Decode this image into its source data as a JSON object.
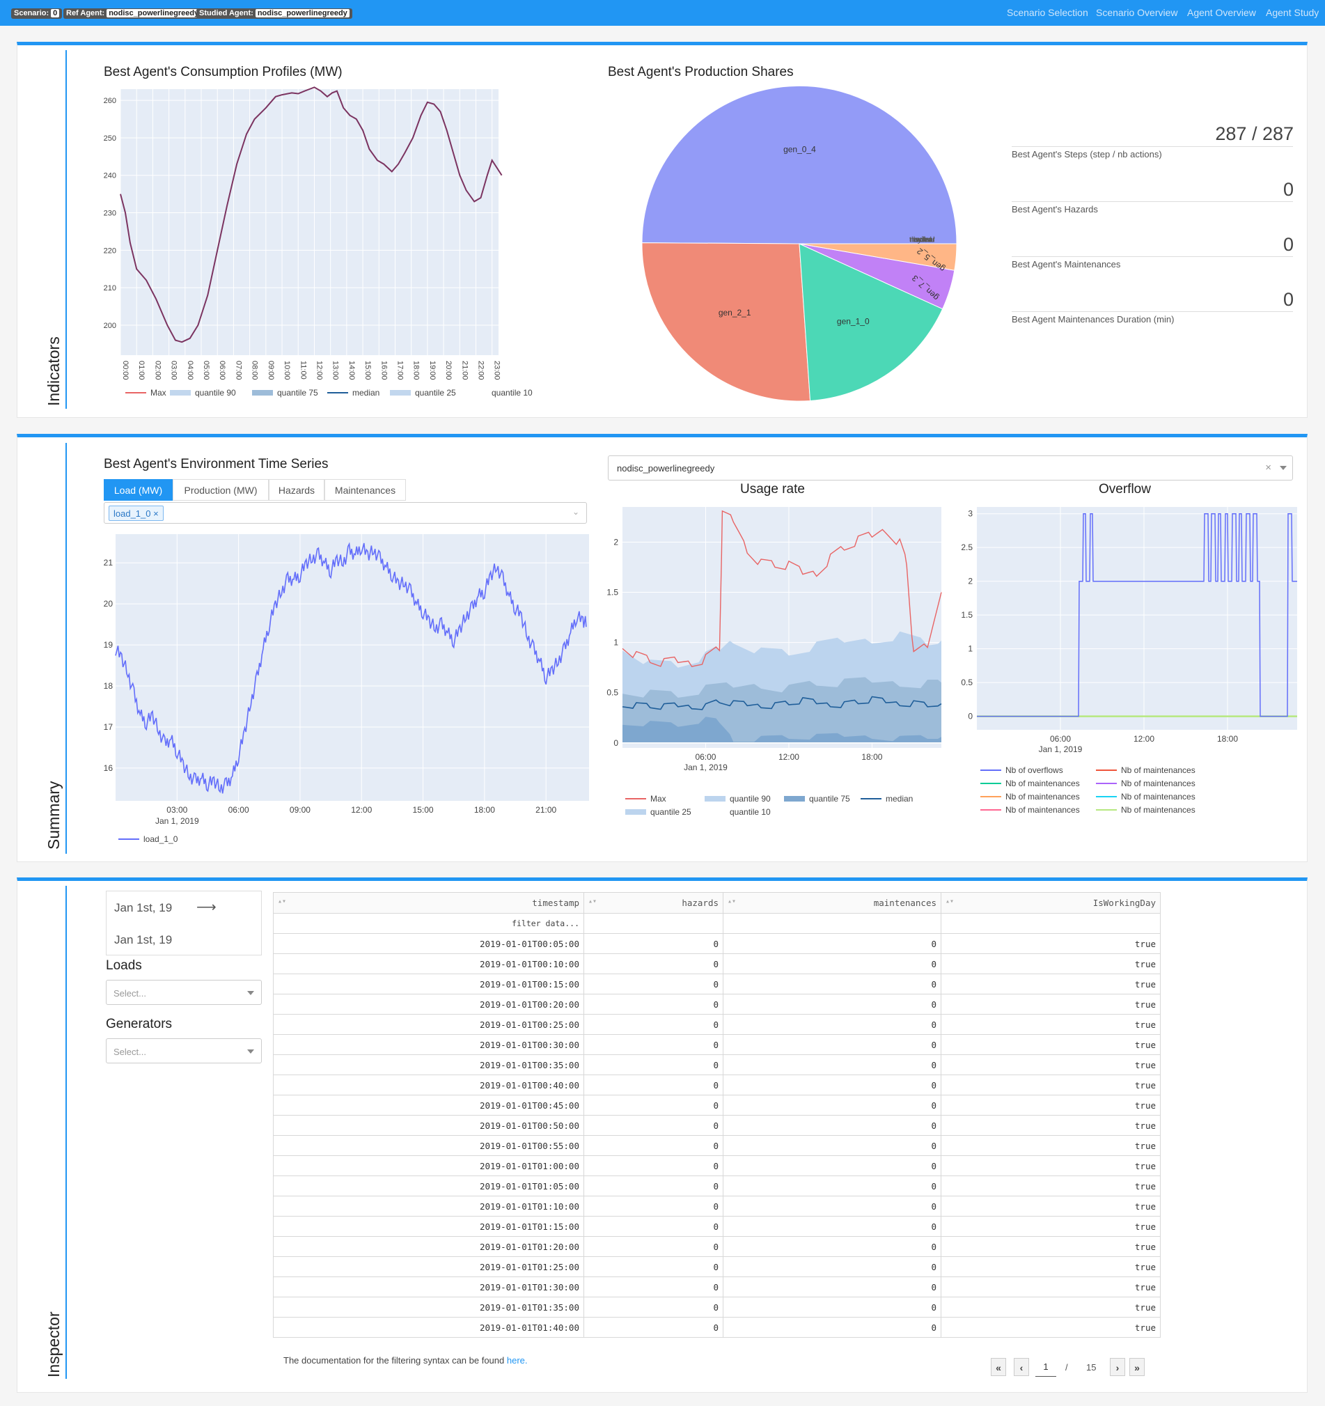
{
  "topbar": {
    "badges": [
      {
        "label": "Scenario:",
        "value": "0"
      },
      {
        "label": "Ref Agent:",
        "value": "nodisc_powerlinegreedy"
      },
      {
        "label": "Studied Agent:",
        "value": "nodisc_powerlinegreedy"
      }
    ],
    "nav": [
      "Scenario Selection",
      "Scenario Overview",
      "Agent Overview",
      "Agent Study"
    ]
  },
  "sections": {
    "indicators": "Indicators",
    "summary": "Summary",
    "inspector": "Inspector"
  },
  "consumption": {
    "title": "Best Agent's Consumption Profiles (MW)",
    "legend": [
      "Max",
      "quantile 90",
      "quantile 75",
      "median",
      "quantile 25",
      "quantile 10"
    ]
  },
  "production": {
    "title": "Best Agent's Production Shares"
  },
  "indicators": [
    {
      "value": "287 / 287",
      "label": "Best Agent's Steps (step / nb actions)"
    },
    {
      "value": "0",
      "label": "Best Agent's Hazards"
    },
    {
      "value": "0",
      "label": "Best Agent's Maintenances"
    },
    {
      "value": "0",
      "label": "Best Agent Maintenances Duration (min)"
    }
  ],
  "env": {
    "title": "Best Agent's Environment Time Series",
    "tabs": [
      "Load (MW)",
      "Production (MW)",
      "Hazards",
      "Maintenances"
    ],
    "selected_chip": "load_1_0",
    "chip_close": "×",
    "legend": "load_1_0"
  },
  "agent_select": {
    "value": "nodisc_powerlinegreedy",
    "clear": "×"
  },
  "usage": {
    "title": "Usage rate",
    "legend": [
      "Max",
      "quantile 90",
      "quantile 75",
      "median",
      "quantile 25",
      "quantile 10"
    ]
  },
  "overflow": {
    "title": "Overflow",
    "legend": [
      "Nb of overflows",
      "Nb of maintenances",
      "Nb of maintenances",
      "Nb of maintenances",
      "Nb of maintenances",
      "Nb of maintenances",
      "Nb of maintenances",
      "Nb of maintenances"
    ],
    "legend_colors": [
      "#636efa",
      "#ef553b",
      "#00cc96",
      "#ab63fa",
      "#ffa15a",
      "#19d3f3",
      "#ff6692",
      "#b6e880"
    ]
  },
  "inspector": {
    "date_start": "Jan 1st, 19",
    "date_end": "Jan 1st, 19",
    "date_arrow": "⟶",
    "loads_label": "Loads",
    "loads_placeholder": "Select...",
    "generators_label": "Generators",
    "generators_placeholder": "Select...",
    "doc_text": "The documentation for the filtering syntax can be found ",
    "doc_link": "here."
  },
  "table": {
    "columns": [
      "timestamp",
      "hazards",
      "maintenances",
      "IsWorkingDay"
    ],
    "filter_placeholder": "filter data...",
    "rows": [
      [
        "2019-01-01T00:05:00",
        "0",
        "0",
        "true"
      ],
      [
        "2019-01-01T00:10:00",
        "0",
        "0",
        "true"
      ],
      [
        "2019-01-01T00:15:00",
        "0",
        "0",
        "true"
      ],
      [
        "2019-01-01T00:20:00",
        "0",
        "0",
        "true"
      ],
      [
        "2019-01-01T00:25:00",
        "0",
        "0",
        "true"
      ],
      [
        "2019-01-01T00:30:00",
        "0",
        "0",
        "true"
      ],
      [
        "2019-01-01T00:35:00",
        "0",
        "0",
        "true"
      ],
      [
        "2019-01-01T00:40:00",
        "0",
        "0",
        "true"
      ],
      [
        "2019-01-01T00:45:00",
        "0",
        "0",
        "true"
      ],
      [
        "2019-01-01T00:50:00",
        "0",
        "0",
        "true"
      ],
      [
        "2019-01-01T00:55:00",
        "0",
        "0",
        "true"
      ],
      [
        "2019-01-01T01:00:00",
        "0",
        "0",
        "true"
      ],
      [
        "2019-01-01T01:05:00",
        "0",
        "0",
        "true"
      ],
      [
        "2019-01-01T01:10:00",
        "0",
        "0",
        "true"
      ],
      [
        "2019-01-01T01:15:00",
        "0",
        "0",
        "true"
      ],
      [
        "2019-01-01T01:20:00",
        "0",
        "0",
        "true"
      ],
      [
        "2019-01-01T01:25:00",
        "0",
        "0",
        "true"
      ],
      [
        "2019-01-01T01:30:00",
        "0",
        "0",
        "true"
      ],
      [
        "2019-01-01T01:35:00",
        "0",
        "0",
        "true"
      ],
      [
        "2019-01-01T01:40:00",
        "0",
        "0",
        "true"
      ]
    ]
  },
  "pagination": {
    "first": "«",
    "prev": "‹",
    "current": "1",
    "sep": "/",
    "total": "15",
    "next": "›",
    "last": "»"
  },
  "chart_data": [
    {
      "id": "consumption",
      "type": "line",
      "title": "Best Agent's Consumption Profiles (MW)",
      "categories": [
        "00:00",
        "01:00",
        "02:00",
        "03:00",
        "04:00",
        "05:00",
        "06:00",
        "07:00",
        "08:00",
        "09:00",
        "10:00",
        "11:00",
        "12:00",
        "13:00",
        "14:00",
        "15:00",
        "16:00",
        "17:00",
        "18:00",
        "19:00",
        "20:00",
        "21:00",
        "22:00",
        "23:00"
      ],
      "ylim": [
        192,
        263
      ],
      "yticks": [
        200,
        210,
        220,
        230,
        240,
        250,
        260
      ],
      "series": [
        {
          "name": "Max",
          "color": "#7b3360",
          "x": [
            0,
            0.3,
            0.6,
            1,
            1.6,
            2.2,
            2.9,
            3.4,
            3.8,
            4.3,
            4.8,
            5.4,
            6,
            6.6,
            7.2,
            7.8,
            8.3,
            9,
            9.6,
            10,
            10.6,
            11,
            11.4,
            11.7,
            12,
            12.4,
            12.8,
            13.1,
            13.4,
            13.8,
            14.2,
            14.6,
            15,
            15.4,
            15.9,
            16.3,
            16.8,
            17.2,
            17.6,
            18.1,
            18.6,
            19,
            19.4,
            19.8,
            20.2,
            20.6,
            21,
            21.4,
            21.9,
            22.3,
            22.7,
            23,
            23.3,
            23.6
          ],
          "values": [
            235,
            230,
            222,
            215,
            212,
            207,
            200,
            196,
            195.5,
            196.5,
            200,
            208,
            220,
            232,
            243,
            251,
            255,
            258,
            261,
            261.5,
            262,
            261.8,
            262.5,
            263,
            263.5,
            262.5,
            261,
            262,
            262.5,
            258,
            256,
            255,
            252,
            247,
            244,
            243,
            241,
            243,
            246,
            250,
            256,
            259.5,
            259,
            257,
            252,
            246,
            240,
            236,
            233,
            234,
            240,
            244,
            242,
            240
          ]
        }
      ],
      "legend": [
        "Max",
        "quantile 90",
        "quantile 75",
        "median",
        "quantile 25",
        "quantile 10"
      ]
    },
    {
      "id": "production",
      "type": "pie",
      "title": "Best Agent's Production Shares",
      "labels": [
        "gen_0_4",
        "gen_2_1",
        "gen_1_0",
        "gen_7_3",
        "gen_5_2",
        "thermal",
        "nuclear",
        "hydro",
        "solar",
        "wind"
      ],
      "values": [
        49.9,
        26.2,
        17.1,
        4.1,
        2.7,
        0.0,
        0.0,
        0.0,
        0.0,
        0.0
      ],
      "colors": [
        "#939bf7",
        "#f08a77",
        "#4cd8b6",
        "#c181f6",
        "#ffb686",
        "#636efa",
        "#636efa",
        "#636efa",
        "#636efa",
        "#636efa"
      ]
    },
    {
      "id": "env",
      "type": "line",
      "title": "Best Agent's Environment Time Series",
      "x_unit": "hours from Jan 1, 2019",
      "xticks": [
        "03:00",
        "06:00",
        "09:00",
        "12:00",
        "15:00",
        "18:00",
        "21:00"
      ],
      "xtick_values": [
        3,
        6,
        9,
        12,
        15,
        18,
        21
      ],
      "ylim": [
        15.2,
        21.7
      ],
      "yticks": [
        16,
        17,
        18,
        19,
        20,
        21
      ],
      "series": [
        {
          "name": "load_1_0",
          "color": "#636efa",
          "x": [
            0,
            0.3,
            0.6,
            0.9,
            1.2,
            1.5,
            1.8,
            2.1,
            2.4,
            2.7,
            3,
            3.3,
            3.6,
            3.9,
            4.2,
            4.5,
            4.8,
            5.1,
            5.4,
            5.7,
            6,
            6.3,
            6.6,
            6.9,
            7.2,
            7.5,
            7.8,
            8.1,
            8.4,
            8.7,
            9,
            9.3,
            9.6,
            9.9,
            10.2,
            10.5,
            10.8,
            11.1,
            11.4,
            11.7,
            12,
            12.3,
            12.6,
            12.9,
            13.2,
            13.5,
            13.8,
            14.1,
            14.4,
            14.7,
            15,
            15.3,
            15.6,
            15.9,
            16.2,
            16.5,
            16.8,
            17.1,
            17.4,
            17.7,
            18,
            18.3,
            18.6,
            18.9,
            19.2,
            19.5,
            19.8,
            20.1,
            20.4,
            20.7,
            21,
            21.3,
            21.6,
            21.9,
            22.2,
            22.5,
            22.8,
            23
          ],
          "values": [
            18.9,
            18.7,
            18.3,
            17.8,
            17.3,
            17.1,
            17.3,
            16.9,
            16.6,
            16.7,
            16.4,
            16.1,
            15.8,
            15.7,
            15.75,
            15.6,
            15.7,
            15.5,
            15.6,
            15.8,
            16.3,
            16.9,
            17.6,
            18.2,
            18.9,
            19.5,
            20.0,
            20.3,
            20.6,
            20.6,
            20.7,
            21.0,
            21.1,
            21.2,
            21.0,
            20.8,
            21.1,
            21.0,
            21.3,
            21.2,
            21.4,
            21.2,
            21.3,
            21.1,
            20.9,
            20.7,
            20.5,
            20.5,
            20.3,
            20.0,
            19.8,
            19.6,
            19.4,
            19.5,
            19.3,
            19.1,
            19.4,
            19.7,
            19.9,
            20.2,
            20.3,
            20.7,
            20.9,
            20.6,
            20.2,
            19.9,
            19.7,
            19.2,
            18.9,
            18.6,
            18.2,
            18.4,
            18.6,
            18.9,
            19.3,
            19.7,
            19.6,
            19.5
          ]
        }
      ],
      "legend": [
        "load_1_0"
      ]
    },
    {
      "id": "usage",
      "type": "area",
      "title": "Usage rate",
      "x_unit": "hours from Jan 1, 2019",
      "xticks": [
        "06:00",
        "12:00",
        "18:00"
      ],
      "xtick_values": [
        6,
        12,
        18
      ],
      "ylim": [
        -0.05,
        2.35
      ],
      "yticks": [
        0,
        0.5,
        1,
        1.5,
        2
      ],
      "series": [
        {
          "name": "Max",
          "color": "#e86464",
          "x": [
            0,
            1,
            2,
            3,
            4,
            5,
            6,
            7,
            7.2,
            8,
            9,
            10,
            11,
            12,
            13,
            14,
            15,
            16,
            17,
            18,
            19,
            20,
            20.5,
            21,
            22,
            23
          ],
          "values": [
            1.0,
            0.88,
            0.83,
            0.78,
            0.8,
            0.82,
            0.85,
            0.95,
            2.25,
            2.2,
            1.95,
            1.8,
            1.78,
            1.75,
            1.68,
            1.72,
            1.85,
            1.95,
            2.0,
            2.05,
            2.15,
            2.0,
            1.8,
            0.85,
            0.95,
            1.5
          ]
        },
        {
          "name": "quantile 90",
          "color": "#bcd4ee",
          "x": [
            0,
            2,
            4,
            6,
            7,
            8,
            10,
            12,
            14,
            16,
            18,
            20,
            22,
            23
          ],
          "values": [
            0.98,
            0.8,
            0.78,
            0.85,
            0.92,
            1.05,
            0.92,
            0.9,
            0.95,
            1.0,
            1.05,
            1.08,
            1.0,
            1.02
          ]
        },
        {
          "name": "quantile 75",
          "color": "#9dbcd9",
          "x": [
            0,
            2,
            4,
            6,
            8,
            10,
            12,
            14,
            16,
            18,
            20,
            22,
            23
          ],
          "values": [
            0.55,
            0.5,
            0.48,
            0.52,
            0.55,
            0.6,
            0.55,
            0.6,
            0.58,
            0.6,
            0.62,
            0.6,
            0.6
          ]
        },
        {
          "name": "median",
          "color": "#1f5e99",
          "x": [
            0,
            1,
            2,
            3,
            4,
            5,
            6,
            7,
            8,
            9,
            10,
            11,
            12,
            13,
            14,
            15,
            16,
            17,
            18,
            19,
            20,
            21,
            22,
            23
          ],
          "values": [
            0.4,
            0.38,
            0.37,
            0.35,
            0.36,
            0.38,
            0.37,
            0.42,
            0.38,
            0.37,
            0.39,
            0.38,
            0.4,
            0.41,
            0.39,
            0.4,
            0.39,
            0.41,
            0.42,
            0.4,
            0.41,
            0.4,
            0.38,
            0.39
          ]
        },
        {
          "name": "quantile 25",
          "color": "#7ea7cf",
          "x": [
            0,
            2,
            4,
            6,
            7,
            8,
            10,
            12,
            14,
            16,
            18,
            20,
            22,
            23
          ],
          "values": [
            0.22,
            0.2,
            0.18,
            0.22,
            0.2,
            0.05,
            0.05,
            0.06,
            0.05,
            0.06,
            0.08,
            0.05,
            0.06,
            0.06
          ]
        },
        {
          "name": "quantile 10",
          "color": "#dbe6f3",
          "x": [
            0,
            23
          ],
          "values": [
            0.0,
            0.0
          ]
        }
      ],
      "legend": [
        "Max",
        "quantile 90",
        "quantile 75",
        "median",
        "quantile 25",
        "quantile 10"
      ]
    },
    {
      "id": "overflow",
      "type": "line",
      "title": "Overflow",
      "x_unit": "hours from Jan 1, 2019",
      "xticks": [
        "06:00",
        "12:00",
        "18:00"
      ],
      "xtick_values": [
        6,
        12,
        18
      ],
      "ylim": [
        -0.2,
        3.1
      ],
      "yticks": [
        0,
        0.5,
        1,
        1.5,
        2,
        2.5,
        3
      ],
      "series": [
        {
          "name": "Nb of overflows",
          "color": "#636efa",
          "x": [
            0,
            7.3,
            7.35,
            7.6,
            7.65,
            7.8,
            7.85,
            8.1,
            8.15,
            8.3,
            8.35,
            16.3,
            16.35,
            16.6,
            16.65,
            16.8,
            16.85,
            17.1,
            17.15,
            17.3,
            17.35,
            17.5,
            17.55,
            17.8,
            17.85,
            18.0,
            18.05,
            18.3,
            18.35,
            18.6,
            18.65,
            18.8,
            18.85,
            19.0,
            19.05,
            19.3,
            19.35,
            19.6,
            19.65,
            19.8,
            19.85,
            20.1,
            20.15,
            20.3,
            20.35,
            21.0,
            21.05,
            22.3,
            22.35,
            22.6,
            22.65,
            23
          ],
          "values": [
            0,
            0,
            2,
            2,
            3,
            3,
            2,
            2,
            3,
            3,
            2,
            2,
            3,
            3,
            2,
            2,
            3,
            3,
            2,
            2,
            3,
            3,
            2,
            2,
            3,
            3,
            2,
            2,
            3,
            3,
            2,
            2,
            3,
            3,
            2,
            2,
            3,
            3,
            2,
            2,
            3,
            3,
            2,
            2,
            0,
            0,
            0,
            0,
            3,
            3,
            2,
            2
          ]
        },
        {
          "name": "Nb of maintenances",
          "color": "#b6e880",
          "x": [
            0,
            23
          ],
          "values": [
            0,
            0
          ]
        }
      ],
      "legend": [
        "Nb of overflows",
        "Nb of maintenances",
        "Nb of maintenances",
        "Nb of maintenances",
        "Nb of maintenances",
        "Nb of maintenances",
        "Nb of maintenances",
        "Nb of maintenances"
      ]
    }
  ]
}
